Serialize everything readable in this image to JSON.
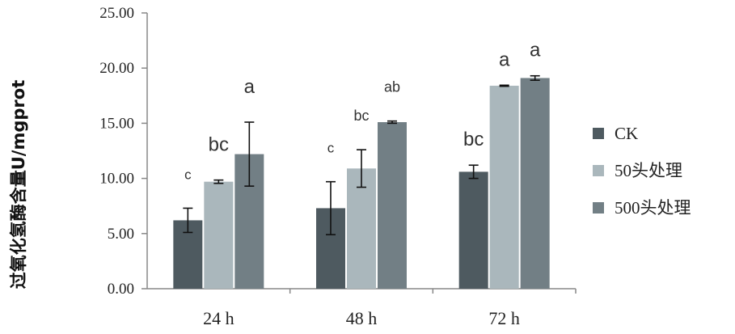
{
  "chart_data": {
    "type": "bar",
    "ylabel": "过氧化氢酶含量U/mgprot",
    "xlabel": "",
    "ylim": [
      0,
      25
    ],
    "yticks": [
      "0.00",
      "5.00",
      "10.00",
      "15.00",
      "20.00",
      "25.00"
    ],
    "categories": [
      "24 h",
      "48 h",
      "72 h"
    ],
    "series": [
      {
        "name": "CK",
        "color": "#4e5a60",
        "values": [
          6.2,
          7.3,
          10.6
        ],
        "errors": [
          1.1,
          2.4,
          0.6
        ],
        "letters": [
          "c",
          "c",
          "bc"
        ]
      },
      {
        "name": "50头处理",
        "color": "#aab7bc",
        "values": [
          9.7,
          10.9,
          18.4
        ],
        "errors": [
          0.15,
          1.7,
          0.05
        ],
        "letters": [
          "bc",
          "bc",
          "a"
        ]
      },
      {
        "name": "500头处理",
        "color": "#727f85",
        "values": [
          12.2,
          15.1,
          19.1
        ],
        "errors": [
          2.9,
          0.1,
          0.2
        ],
        "letters": [
          "a",
          "ab",
          "a"
        ]
      }
    ],
    "legend_position": "right",
    "grid": false
  }
}
